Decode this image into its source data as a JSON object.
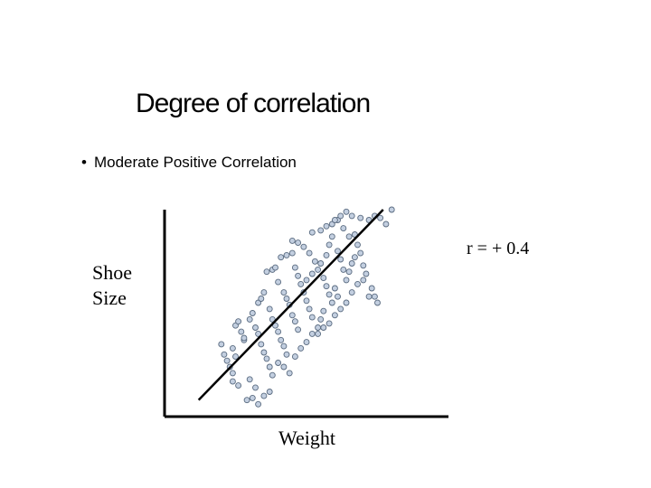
{
  "slide": {
    "title": "Degree of correlation",
    "bullet": "•",
    "subtitle": "Moderate  Positive Correlation"
  },
  "colors": {
    "point_fill": "#c3cfe0",
    "point_stroke": "#5a6b80",
    "axis": "#000000"
  },
  "chart_data": {
    "type": "scatter",
    "xlabel": "Weight",
    "ylabel": "Shoe Size",
    "annotation": "r = + 0.4",
    "xlim": [
      0,
      100
    ],
    "ylim": [
      0,
      100
    ],
    "trend_line": {
      "x": [
        12,
        77
      ],
      "y": [
        8,
        100
      ]
    },
    "points": [
      [
        25,
        44
      ],
      [
        26,
        46
      ],
      [
        27,
        41
      ],
      [
        28,
        37
      ],
      [
        24,
        33
      ],
      [
        25,
        29
      ],
      [
        23,
        24
      ],
      [
        24,
        21
      ],
      [
        26,
        15
      ],
      [
        24,
        17
      ],
      [
        28,
        38
      ],
      [
        30,
        47
      ],
      [
        31,
        50
      ],
      [
        32,
        43
      ],
      [
        33,
        40
      ],
      [
        34,
        35
      ],
      [
        35,
        31
      ],
      [
        36,
        28
      ],
      [
        37,
        24
      ],
      [
        38,
        20
      ],
      [
        33,
        55
      ],
      [
        34,
        57
      ],
      [
        35,
        60
      ],
      [
        37,
        52
      ],
      [
        38,
        47
      ],
      [
        39,
        44
      ],
      [
        40,
        41
      ],
      [
        41,
        37
      ],
      [
        42,
        34
      ],
      [
        43,
        30
      ],
      [
        36,
        70
      ],
      [
        38,
        71
      ],
      [
        39,
        72
      ],
      [
        40,
        65
      ],
      [
        42,
        60
      ],
      [
        43,
        57
      ],
      [
        44,
        54
      ],
      [
        45,
        49
      ],
      [
        46,
        46
      ],
      [
        47,
        42
      ],
      [
        41,
        77
      ],
      [
        43,
        78
      ],
      [
        45,
        79
      ],
      [
        46,
        72
      ],
      [
        47,
        68
      ],
      [
        48,
        64
      ],
      [
        49,
        60
      ],
      [
        50,
        56
      ],
      [
        51,
        52
      ],
      [
        52,
        48
      ],
      [
        40,
        26
      ],
      [
        42,
        24
      ],
      [
        44,
        21
      ],
      [
        46,
        29
      ],
      [
        48,
        33
      ],
      [
        50,
        36
      ],
      [
        52,
        40
      ],
      [
        54,
        43
      ],
      [
        55,
        47
      ],
      [
        56,
        51
      ],
      [
        45,
        85
      ],
      [
        47,
        84
      ],
      [
        49,
        82
      ],
      [
        51,
        79
      ],
      [
        53,
        75
      ],
      [
        54,
        71
      ],
      [
        56,
        67
      ],
      [
        57,
        63
      ],
      [
        58,
        59
      ],
      [
        59,
        55
      ],
      [
        50,
        66
      ],
      [
        52,
        69
      ],
      [
        55,
        74
      ],
      [
        57,
        78
      ],
      [
        58,
        83
      ],
      [
        59,
        87
      ],
      [
        61,
        80
      ],
      [
        62,
        76
      ],
      [
        63,
        71
      ],
      [
        64,
        66
      ],
      [
        52,
        89
      ],
      [
        55,
        90
      ],
      [
        57,
        92
      ],
      [
        59,
        93
      ],
      [
        61,
        95
      ],
      [
        63,
        91
      ],
      [
        65,
        87
      ],
      [
        67,
        88
      ],
      [
        68,
        83
      ],
      [
        69,
        79
      ],
      [
        54,
        40
      ],
      [
        56,
        43
      ],
      [
        58,
        45
      ],
      [
        60,
        49
      ],
      [
        62,
        52
      ],
      [
        64,
        55
      ],
      [
        66,
        60
      ],
      [
        68,
        64
      ],
      [
        70,
        66
      ],
      [
        72,
        58
      ],
      [
        20,
        35
      ],
      [
        21,
        30
      ],
      [
        22,
        27
      ],
      [
        30,
        18
      ],
      [
        32,
        14
      ],
      [
        35,
        10
      ],
      [
        37,
        12
      ],
      [
        29,
        8
      ],
      [
        31,
        9
      ],
      [
        33,
        6
      ],
      [
        60,
        62
      ],
      [
        61,
        58
      ],
      [
        65,
        70
      ],
      [
        66,
        74
      ],
      [
        67,
        77
      ],
      [
        70,
        73
      ],
      [
        71,
        69
      ],
      [
        73,
        62
      ],
      [
        74,
        58
      ],
      [
        75,
        55
      ],
      [
        60,
        95
      ],
      [
        62,
        97
      ],
      [
        64,
        99
      ],
      [
        66,
        97
      ],
      [
        69,
        96
      ],
      [
        72,
        95
      ],
      [
        74,
        97
      ],
      [
        76,
        96
      ],
      [
        78,
        93
      ],
      [
        80,
        100
      ]
    ]
  }
}
